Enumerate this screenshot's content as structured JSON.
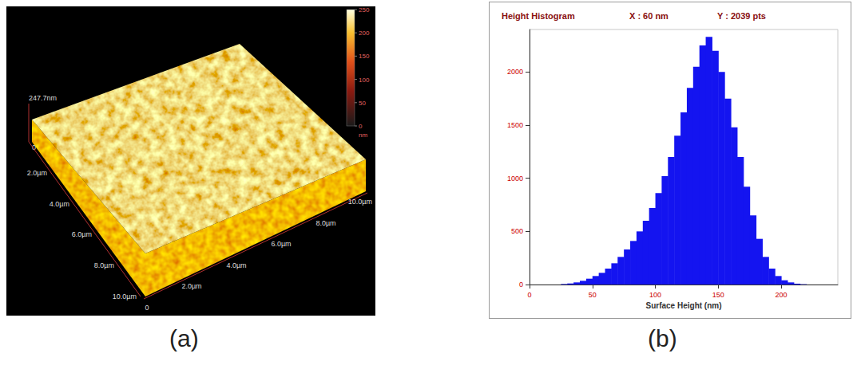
{
  "figure": {
    "panel_labels": [
      "(a)",
      "(b)"
    ]
  },
  "surface_image": {
    "height_axis": {
      "ticks": [
        {
          "value": 0,
          "label": "0"
        },
        {
          "value": 247.7,
          "label": "247.7nm"
        }
      ]
    },
    "depth_axis": {
      "ticks": [
        {
          "value": 2,
          "label": "2.0µm"
        },
        {
          "value": 4,
          "label": "4.0µm"
        },
        {
          "value": 6,
          "label": "6.0µm"
        },
        {
          "value": 8,
          "label": "8.0µm"
        },
        {
          "value": 10,
          "label": "10.0µm"
        }
      ]
    },
    "width_axis": {
      "ticks": [
        {
          "value": 0,
          "label": "0"
        },
        {
          "value": 2,
          "label": "2.0µm"
        },
        {
          "value": 4,
          "label": "4.0µm"
        },
        {
          "value": 6,
          "label": "6.0µm"
        },
        {
          "value": 8,
          "label": "8.0µm"
        },
        {
          "value": 10,
          "label": "10.0µm"
        }
      ]
    },
    "colorbar": {
      "ticks": [
        0,
        50,
        100,
        150,
        200,
        250
      ],
      "unit": "nm"
    }
  },
  "chart_data": {
    "type": "histogram",
    "title": "Height Histogram",
    "annotations": [
      "X : 60 nm",
      "Y : 2039 pts"
    ],
    "x_label": "Surface Height (nm)",
    "bins": [
      25,
      30,
      35,
      40,
      45,
      50,
      55,
      60,
      65,
      70,
      75,
      80,
      85,
      90,
      95,
      100,
      105,
      110,
      115,
      120,
      125,
      130,
      135,
      140,
      145,
      150,
      155,
      160,
      165,
      170,
      175,
      180,
      185,
      190,
      195,
      200,
      205,
      210,
      215,
      220
    ],
    "values": [
      5,
      10,
      20,
      35,
      55,
      80,
      110,
      150,
      200,
      260,
      330,
      410,
      500,
      600,
      720,
      860,
      1020,
      1200,
      1400,
      1620,
      1850,
      2050,
      2250,
      2330,
      2200,
      2000,
      1750,
      1480,
      1200,
      920,
      650,
      430,
      260,
      150,
      80,
      40,
      20,
      8,
      3
    ],
    "color": "#1414f0",
    "xlim": [
      0,
      245
    ],
    "xticks": [
      0,
      50,
      100,
      150,
      200
    ],
    "ylim": [
      0,
      2400
    ],
    "yticks": [
      0,
      500,
      1000,
      1500,
      2000
    ],
    "grid": false
  }
}
